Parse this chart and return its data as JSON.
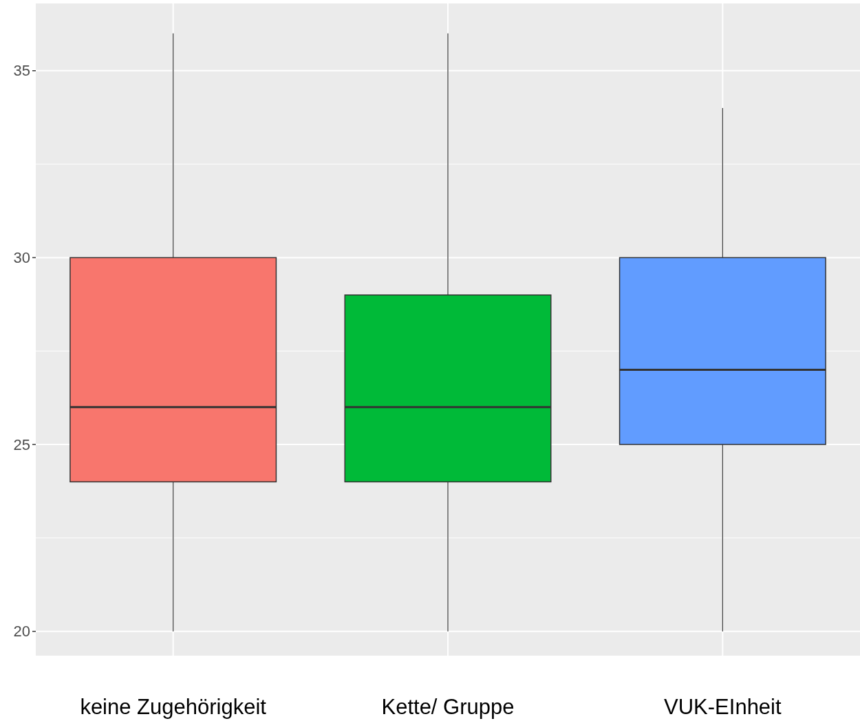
{
  "chart_data": {
    "type": "box",
    "categories": [
      "keine Zugehörigkeit",
      "Kette/ Gruppe",
      "VUK-EInheit"
    ],
    "colors": [
      "#f8766d",
      "#00ba38",
      "#619cff"
    ],
    "boxes": [
      {
        "low": 20,
        "q1": 24,
        "median": 26,
        "q3": 30,
        "high": 36
      },
      {
        "low": 20,
        "q1": 24,
        "median": 26,
        "q3": 29,
        "high": 36
      },
      {
        "low": 20,
        "q1": 25,
        "median": 27,
        "q3": 30,
        "high": 34
      }
    ],
    "ylim": [
      19.35,
      36.8
    ],
    "yticks": [
      20,
      25,
      30,
      35
    ],
    "grid": true
  }
}
